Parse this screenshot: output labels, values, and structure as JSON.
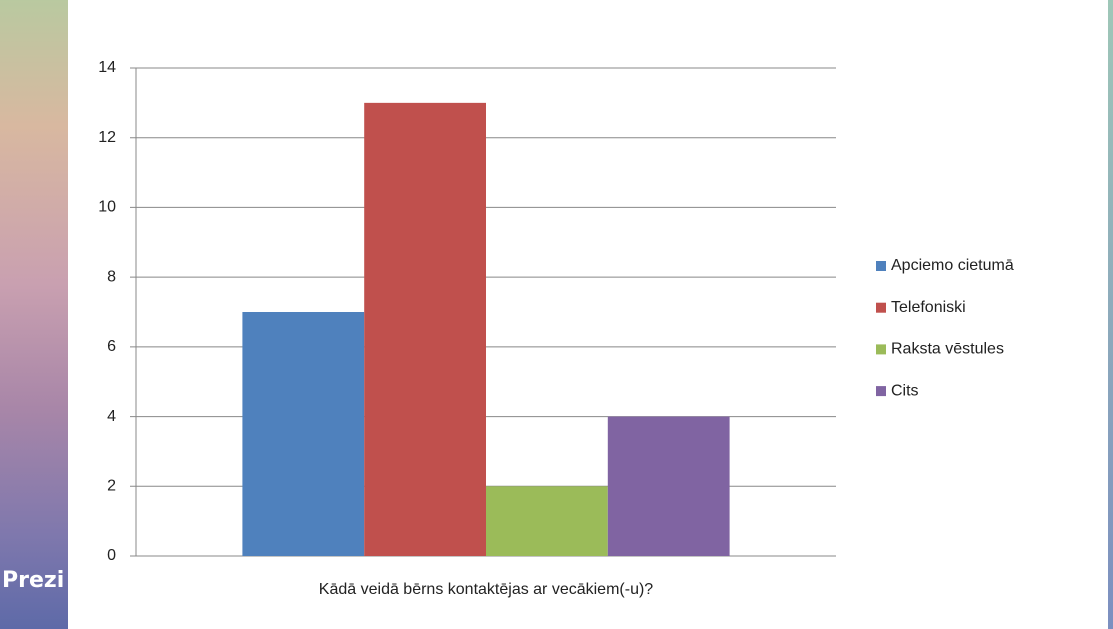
{
  "watermark": "Prezi",
  "chart_data": {
    "type": "bar",
    "categories": [
      "Kādā veidā bērns kontaktējas ar vecākiem(-u)?"
    ],
    "series": [
      {
        "name": "Apciemo cietumā",
        "color": "#4f81bd",
        "values": [
          7
        ]
      },
      {
        "name": "Telefoniski",
        "color": "#c0504d",
        "values": [
          13
        ]
      },
      {
        "name": "Raksta vēstules",
        "color": "#9bbb59",
        "values": [
          2
        ]
      },
      {
        "name": "Cits",
        "color": "#8064a2",
        "values": [
          4
        ]
      }
    ],
    "ylim": [
      0,
      14
    ],
    "yticks": [
      0,
      2,
      4,
      6,
      8,
      10,
      12,
      14
    ],
    "grid": true,
    "legend": "right"
  }
}
